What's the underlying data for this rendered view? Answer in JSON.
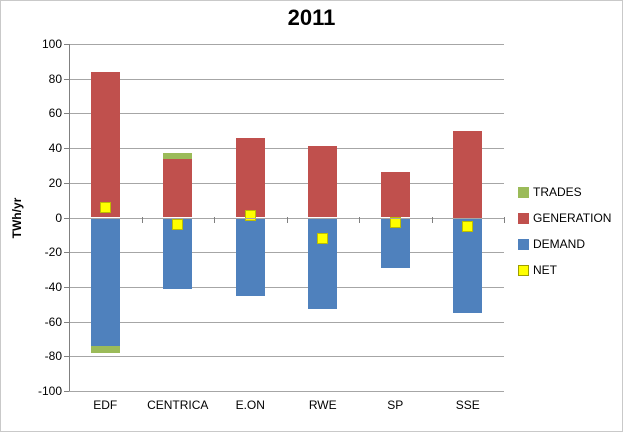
{
  "title": "2011",
  "y_axis_label": "TWh/yr",
  "legend": {
    "position": "right",
    "items": [
      {
        "label": "TRADES",
        "color": "#9bbb59"
      },
      {
        "label": "GENERATION",
        "color": "#c0504d"
      },
      {
        "label": "DEMAND",
        "color": "#4f81bd"
      },
      {
        "label": "NET",
        "color": "#ffff00"
      }
    ]
  },
  "chart_data": {
    "type": "bar",
    "stacked": true,
    "title": "2011",
    "xlabel": "",
    "ylabel": "TWh/yr",
    "ylim": [
      -100,
      100
    ],
    "ytick_step": 20,
    "grid": true,
    "legend_position": "right",
    "categories": [
      "EDF",
      "CENTRICA",
      "E.ON",
      "RWE",
      "SP",
      "SSE"
    ],
    "series": [
      {
        "name": "GENERATION",
        "render": "bar",
        "color": "#c0504d",
        "values": [
          84,
          34,
          46,
          41,
          26,
          50
        ]
      },
      {
        "name": "DEMAND",
        "render": "bar",
        "color": "#4f81bd",
        "values": [
          -74,
          -41,
          -45,
          -53,
          -29,
          -55
        ]
      },
      {
        "name": "TRADES",
        "render": "bar",
        "color": "#9bbb59",
        "values": [
          -4,
          3,
          0,
          0,
          0,
          0
        ]
      },
      {
        "name": "NET",
        "render": "point",
        "color": "#ffff00",
        "values": [
          6,
          -4,
          1,
          -12,
          -3,
          -5
        ]
      }
    ]
  }
}
